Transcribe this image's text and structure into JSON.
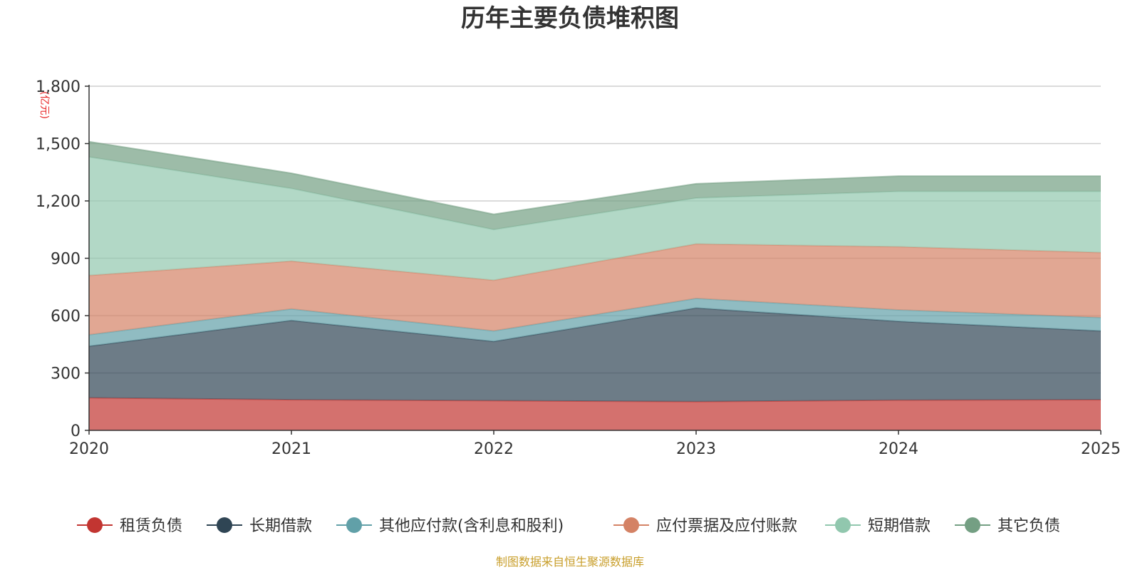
{
  "chart_data": {
    "type": "area",
    "stacked": true,
    "title": "历年主要负债堆积图",
    "y_unit": "(亿元)",
    "xlabel": "",
    "ylabel": "",
    "categories": [
      "2020",
      "2021",
      "2022",
      "2023",
      "2024",
      "2025"
    ],
    "ylim": [
      0,
      1800
    ],
    "y_ticks": [
      0,
      300,
      600,
      900,
      1200,
      1500,
      1800
    ],
    "y_tick_labels": [
      "0",
      "300",
      "600",
      "900",
      "1,200",
      "1,500",
      "1,800"
    ],
    "grid": true,
    "legend_position": "bottom",
    "series": [
      {
        "name": "租赁负债",
        "values": [
          170,
          160,
          155,
          150,
          158,
          160
        ],
        "color": "#c23531"
      },
      {
        "name": "长期借款",
        "values": [
          270,
          415,
          310,
          490,
          412,
          360
        ],
        "color": "#2f4554"
      },
      {
        "name": "其他应付款(含利息和股利)",
        "values": [
          60,
          60,
          55,
          50,
          60,
          70
        ],
        "color": "#61a0a8"
      },
      {
        "name": "应付票据及应付账款",
        "values": [
          310,
          250,
          265,
          285,
          330,
          340
        ],
        "color": "#d48265"
      },
      {
        "name": "短期借款",
        "values": [
          620,
          380,
          265,
          240,
          290,
          320
        ],
        "color": "#91c7ae"
      },
      {
        "name": "其它负债",
        "values": [
          80,
          80,
          80,
          75,
          80,
          80
        ],
        "color": "#749f83"
      }
    ],
    "source_note": "制图数据来自恒生聚源数据库"
  }
}
